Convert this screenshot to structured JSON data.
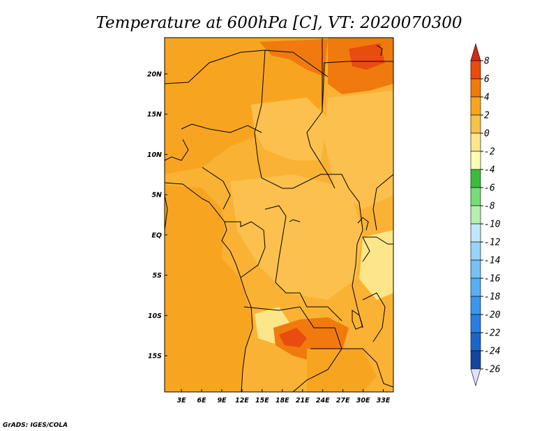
{
  "chart_data": {
    "type": "heatmap",
    "title": "Temperature at 600hPa [C], VT: 2020070300",
    "x_ticks": [
      "3E",
      "6E",
      "9E",
      "12E",
      "15E",
      "18E",
      "21E",
      "24E",
      "27E",
      "30E",
      "33E"
    ],
    "x_tick_values": [
      3,
      6,
      9,
      12,
      15,
      18,
      21,
      24,
      27,
      30,
      33
    ],
    "y_ticks": [
      "20N",
      "15N",
      "10N",
      "5N",
      "EQ",
      "5S",
      "10S",
      "15S"
    ],
    "y_tick_values": [
      20,
      15,
      10,
      5,
      0,
      -5,
      -10,
      -15
    ],
    "xlim": [
      0.5,
      34.5
    ],
    "ylim": [
      -19.5,
      24.5
    ],
    "colorbar": {
      "levels": [
        -26,
        -24,
        -22,
        -20,
        -18,
        -16,
        -14,
        -12,
        -10,
        -8,
        -6,
        -4,
        -2,
        0,
        2,
        4,
        6,
        8
      ],
      "colors": [
        "#0a2a7a",
        "#1446a0",
        "#1e64c8",
        "#2a7ee0",
        "#3c96ec",
        "#5aaef2",
        "#78c0f5",
        "#98d4f8",
        "#c0e8fa",
        "#b8eeb0",
        "#78dc78",
        "#3cbc3c",
        "#ffffb4",
        "#fde68a",
        "#f9c24a",
        "#f7a520",
        "#f07a0e",
        "#e84c0e",
        "#d42a10"
      ],
      "min_arrow_color": "#e0e0ff",
      "max_arrow_color": "#d42a10"
    },
    "field_summary": "Most of the domain is 0 to 4 C. Warmest areas (4 to 6 C) in the far north-east (around 24-34E, 18-24N) and over southern Africa (around 17-22E, 13-17S). Cooler pockets (-2 to 0 C) near 15E 13S and 32E 7S."
  },
  "credit": "GrADS: IGES/COLA"
}
